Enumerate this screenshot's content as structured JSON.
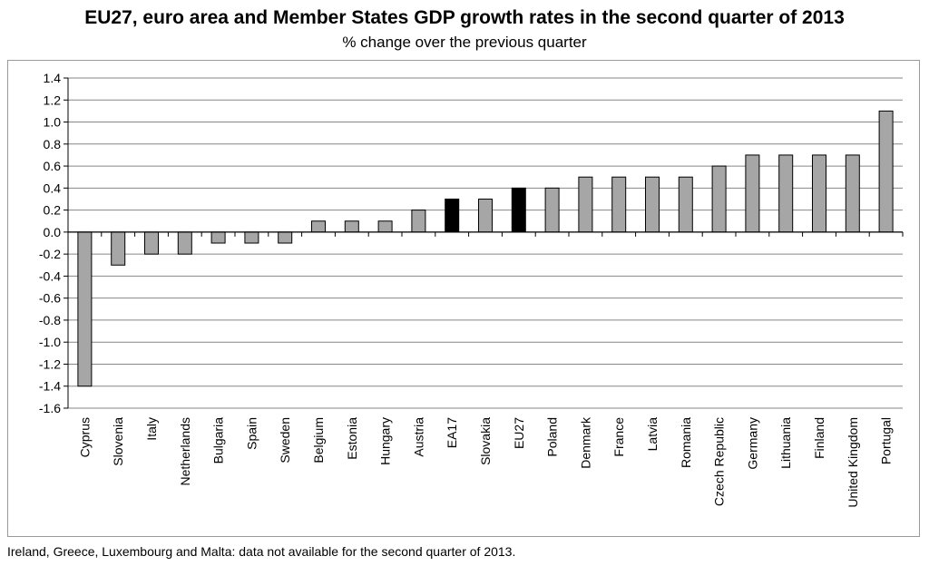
{
  "page": {
    "footnote": "Ireland, Greece, Luxembourg and Malta: data not available for the second quarter of 2013."
  },
  "chart_data": {
    "type": "bar",
    "title": "EU27, euro area and Member States GDP growth rates in the second quarter of 2013",
    "subtitle": "% change over the previous quarter",
    "xlabel": "",
    "ylabel": "",
    "ylim": [
      -1.6,
      1.4
    ],
    "yticks": [
      1.4,
      1.2,
      1.0,
      0.8,
      0.6,
      0.4,
      0.2,
      0.0,
      -0.2,
      -0.4,
      -0.6,
      -0.8,
      -1.0,
      -1.2,
      -1.4,
      -1.6
    ],
    "ytick_labels": [
      "1.4",
      "1.2",
      "1.0",
      "0.8",
      "0.6",
      "0.4",
      "0.2",
      "0.0",
      "-0.2",
      "-0.4",
      "-0.6",
      "-0.8",
      "-1.0",
      "-1.2",
      "-1.4",
      "-1.6"
    ],
    "grid": true,
    "categories": [
      "Cyprus",
      "Slovenia",
      "Italy",
      "Netherlands",
      "Bulgaria",
      "Spain",
      "Sweden",
      "Belgium",
      "Estonia",
      "Hungary",
      "Austria",
      "EA17",
      "Slovakia",
      "EU27",
      "Poland",
      "Denmark",
      "France",
      "Latvia",
      "Romania",
      "Czech Republic",
      "Germany",
      "Lithuania",
      "Finland",
      "United Kingdom",
      "Portugal"
    ],
    "values": [
      -1.4,
      -0.3,
      -0.2,
      -0.2,
      -0.1,
      -0.1,
      -0.1,
      0.1,
      0.1,
      0.1,
      0.2,
      0.3,
      0.3,
      0.4,
      0.4,
      0.5,
      0.5,
      0.5,
      0.5,
      0.6,
      0.7,
      0.7,
      0.7,
      0.7,
      1.1
    ],
    "highlighted": [
      "EA17",
      "EU27"
    ],
    "colors": {
      "bar": "#a6a6a6",
      "highlight": "#000000",
      "grid": "#868686"
    }
  }
}
